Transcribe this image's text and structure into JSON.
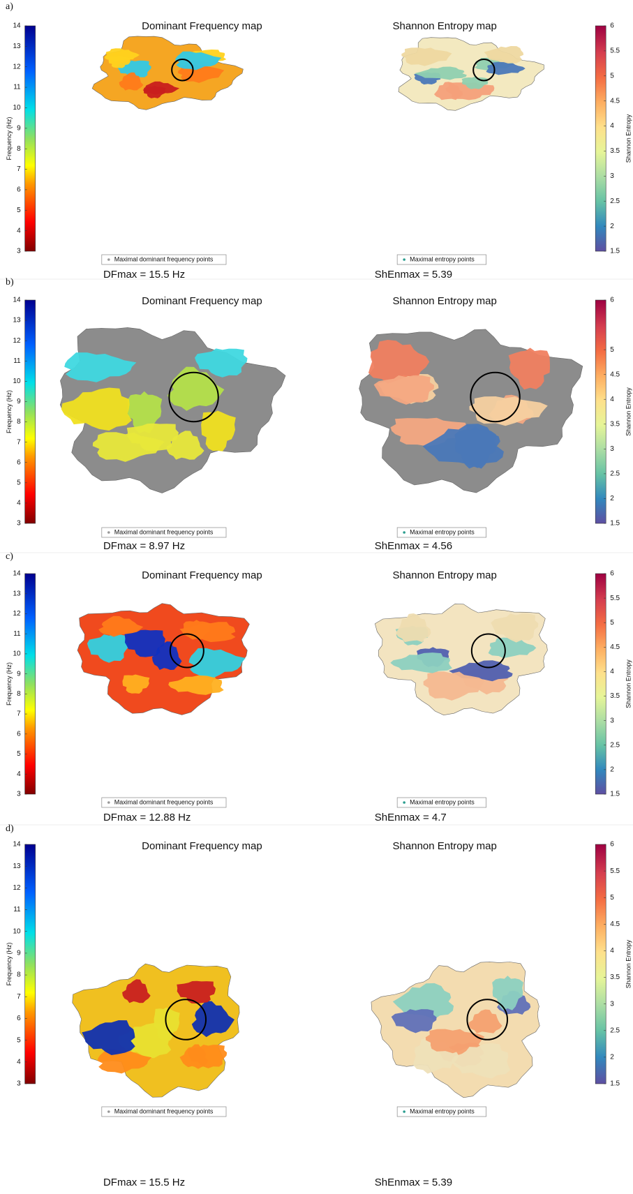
{
  "panels": [
    {
      "label": "a)",
      "df_title": "Dominant Frequency map",
      "se_title": "Shannon Entropy map",
      "df_colorbar": {
        "label": "Frequency (Hz)",
        "range": [
          3,
          14
        ],
        "ticks": [
          3,
          4,
          5,
          6,
          7,
          8,
          9,
          10,
          11,
          12,
          13,
          14
        ]
      },
      "se_colorbar": {
        "label": "Shannon Entropy",
        "range": [
          1.5,
          6
        ],
        "ticks": [
          1.5,
          2,
          2.5,
          3,
          3.5,
          4,
          4.5,
          5,
          5.5,
          6
        ]
      },
      "df_legend": "Maximal dominant frequency points",
      "se_legend": "Maximal entropy points",
      "df_max": "DFmax = 15.5 Hz",
      "se_max": "ShEnmax = 5.39"
    },
    {
      "label": "b)",
      "df_title": "Dominant Frequency map",
      "se_title": "Shannon Entropy map",
      "df_colorbar": {
        "label": "Frequency (Hz)",
        "range": [
          3,
          14
        ],
        "ticks": [
          3,
          4,
          5,
          6,
          7,
          8,
          9,
          10,
          11,
          12,
          13,
          14
        ]
      },
      "se_colorbar": {
        "label": "Shannon Entropy",
        "range": [
          1.5,
          6
        ],
        "ticks": [
          1.5,
          2,
          2.5,
          3,
          3.5,
          4,
          4.5,
          5,
          6
        ]
      },
      "df_legend": "Maximal dominant frequency points",
      "se_legend": "Maximal entropy points",
      "df_max": "DFmax = 8.97 Hz",
      "se_max": "ShEnmax = 4.56"
    },
    {
      "label": "c)",
      "df_title": "Dominant Frequency map",
      "se_title": "Shannon Entropy map",
      "df_colorbar": {
        "label": "Frequency (Hz)",
        "range": [
          3,
          14
        ],
        "ticks": [
          3,
          4,
          5,
          6,
          7,
          8,
          9,
          10,
          11,
          12,
          13,
          14
        ]
      },
      "se_colorbar": {
        "label": "Shannon Entropy",
        "range": [
          1.5,
          6
        ],
        "ticks": [
          1.5,
          2,
          2.5,
          3,
          3.5,
          4,
          4.5,
          5,
          5.5,
          6
        ]
      },
      "df_legend": "Maximal dominant frequency points",
      "se_legend": "Maximal entropy points",
      "df_max": "DFmax = 12.88 Hz",
      "se_max": "ShEnmax = 4.7"
    },
    {
      "label": "d)",
      "df_title": "Dominant Frequency map",
      "se_title": "Shannon Entropy map",
      "df_colorbar": {
        "label": "Frequency (Hz)",
        "range": [
          3,
          14
        ],
        "ticks": [
          3,
          4,
          5,
          6,
          7,
          8,
          9,
          10,
          11,
          12,
          13,
          14
        ]
      },
      "se_colorbar": {
        "label": "Shannon Entropy",
        "range": [
          1.5,
          6
        ],
        "ticks": [
          1.5,
          2,
          2.5,
          3,
          3.5,
          4,
          4.5,
          5,
          5.5,
          6
        ]
      },
      "df_legend": "Maximal dominant frequency points",
      "se_legend": "Maximal entropy points",
      "df_max": "DFmax = 15.5 Hz",
      "se_max": "ShEnmax = 5.39"
    }
  ]
}
